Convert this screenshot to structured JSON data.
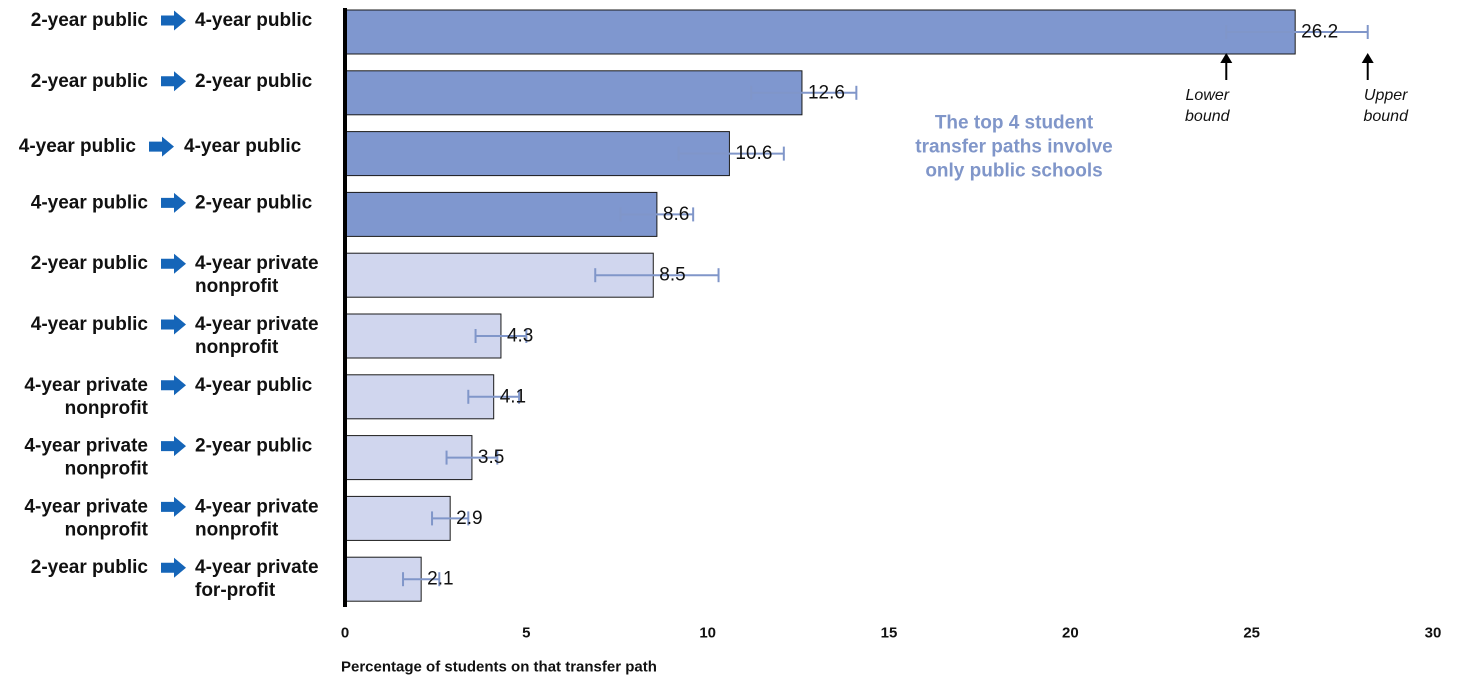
{
  "chart_data": {
    "type": "bar",
    "orientation": "horizontal",
    "xlabel": "Percentage of students on that transfer path",
    "xlim": [
      0,
      30
    ],
    "xticks": [
      0,
      5,
      10,
      15,
      20,
      25,
      30
    ],
    "grid": false,
    "categories": [
      {
        "from": [
          "2-year public"
        ],
        "to": [
          "4-year public"
        ]
      },
      {
        "from": [
          "2-year public"
        ],
        "to": [
          "2-year public"
        ]
      },
      {
        "from": [
          "4-year public"
        ],
        "to": [
          "4-year public"
        ]
      },
      {
        "from": [
          "4-year public"
        ],
        "to": [
          "2-year public"
        ]
      },
      {
        "from": [
          "2-year public"
        ],
        "to": [
          "4-year private",
          "nonprofit"
        ]
      },
      {
        "from": [
          "4-year public"
        ],
        "to": [
          "4-year private",
          "nonprofit"
        ]
      },
      {
        "from": [
          "4-year private",
          "nonprofit"
        ],
        "to": [
          "4-year public"
        ]
      },
      {
        "from": [
          "4-year private",
          "nonprofit"
        ],
        "to": [
          "2-year public"
        ]
      },
      {
        "from": [
          "4-year private",
          "nonprofit"
        ],
        "to": [
          "4-year private",
          "nonprofit"
        ]
      },
      {
        "from": [
          "2-year public"
        ],
        "to": [
          "4-year private",
          "for-profit"
        ]
      }
    ],
    "values": [
      26.2,
      12.6,
      10.6,
      8.6,
      8.5,
      4.3,
      4.1,
      3.5,
      2.9,
      2.1
    ],
    "value_labels": [
      "26.2",
      "12.6",
      "10.6",
      "8.6",
      "8.5",
      "4.3",
      "4.1",
      "3.5",
      "2.9",
      "2.1"
    ],
    "lower_bounds": [
      24.3,
      11.2,
      9.2,
      7.6,
      6.9,
      3.6,
      3.4,
      2.8,
      2.4,
      1.6
    ],
    "upper_bounds": [
      28.2,
      14.1,
      12.1,
      9.6,
      10.3,
      5.0,
      4.8,
      4.2,
      3.4,
      2.6
    ],
    "public_only": [
      true,
      true,
      true,
      true,
      false,
      false,
      false,
      false,
      false,
      false
    ],
    "annotations": {
      "lower": [
        "Lower",
        "bound"
      ],
      "upper": [
        "Upper",
        "bound"
      ],
      "callout": [
        "The top 4 student",
        "transfer paths involve",
        "only public schools"
      ]
    }
  },
  "colors": {
    "public_only_fill": "#7f97cf",
    "other_fill": "#d0d6ee",
    "bar_stroke": "#1a1a1a",
    "error_bar": "#8096c9",
    "callout_text": "#8096c9",
    "arrow_icon": "#1565b8",
    "axis": "#000000"
  },
  "icons": {
    "path_arrow": "arrow-right-icon",
    "bound_pointer": "arrow-up-icon"
  }
}
